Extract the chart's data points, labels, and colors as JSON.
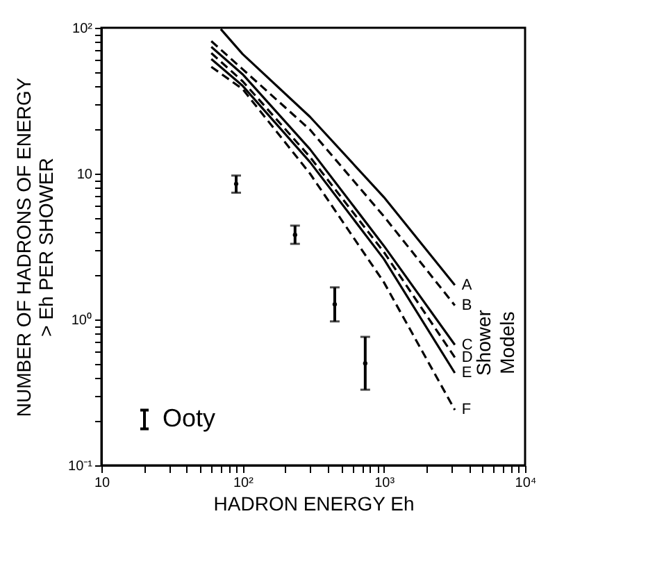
{
  "chart_data": {
    "type": "line",
    "xlabel": "HADRON ENERGY  Eh",
    "ylabel": "NUMBER OF HADRONS OF ENERGY\n> Eh    PER SHOWER",
    "log": "xy",
    "xlim": [
      10,
      10000
    ],
    "ylim": [
      0.1,
      100
    ],
    "xticks": [
      {
        "value": 10,
        "label": "10"
      },
      {
        "value": 20,
        "label": null
      },
      {
        "value": 30,
        "label": null
      },
      {
        "value": 40,
        "label": null
      },
      {
        "value": 50,
        "label": null
      },
      {
        "value": 60,
        "label": null
      },
      {
        "value": 70,
        "label": null
      },
      {
        "value": 80,
        "label": null
      },
      {
        "value": 90,
        "label": null
      },
      {
        "value": 100,
        "label": "10²"
      },
      {
        "value": 200,
        "label": null
      },
      {
        "value": 300,
        "label": null
      },
      {
        "value": 400,
        "label": null
      },
      {
        "value": 500,
        "label": null
      },
      {
        "value": 600,
        "label": null
      },
      {
        "value": 700,
        "label": null
      },
      {
        "value": 800,
        "label": null
      },
      {
        "value": 900,
        "label": null
      },
      {
        "value": 1000,
        "label": "10³"
      },
      {
        "value": 2000,
        "label": null
      },
      {
        "value": 3000,
        "label": null
      },
      {
        "value": 4000,
        "label": null
      },
      {
        "value": 5000,
        "label": null
      },
      {
        "value": 6000,
        "label": null
      },
      {
        "value": 7000,
        "label": null
      },
      {
        "value": 8000,
        "label": null
      },
      {
        "value": 9000,
        "label": null
      },
      {
        "value": 10000,
        "label": "10⁴"
      }
    ],
    "yticks": [
      {
        "value": 0.1,
        "label": "10⁻¹"
      },
      {
        "value": 0.2,
        "label": null
      },
      {
        "value": 0.3,
        "label": null
      },
      {
        "value": 0.4,
        "label": null
      },
      {
        "value": 0.5,
        "label": null
      },
      {
        "value": 0.6,
        "label": null
      },
      {
        "value": 0.7,
        "label": null
      },
      {
        "value": 0.8,
        "label": null
      },
      {
        "value": 0.9,
        "label": null
      },
      {
        "value": 1,
        "label": "10⁰"
      },
      {
        "value": 2,
        "label": null
      },
      {
        "value": 3,
        "label": null
      },
      {
        "value": 4,
        "label": null
      },
      {
        "value": 5,
        "label": null
      },
      {
        "value": 6,
        "label": null
      },
      {
        "value": 7,
        "label": null
      },
      {
        "value": 8,
        "label": null
      },
      {
        "value": 9,
        "label": null
      },
      {
        "value": 10,
        "label": "10"
      },
      {
        "value": 20,
        "label": null
      },
      {
        "value": 30,
        "label": null
      },
      {
        "value": 40,
        "label": null
      },
      {
        "value": 50,
        "label": null
      },
      {
        "value": 60,
        "label": null
      },
      {
        "value": 70,
        "label": null
      },
      {
        "value": 80,
        "label": null
      },
      {
        "value": 90,
        "label": null
      },
      {
        "value": 100,
        "label": "10²"
      }
    ],
    "grid": false,
    "legend": "bottom left",
    "annotations": [
      "Shower Models"
    ],
    "series": [
      {
        "name": "A",
        "color": "#000000",
        "line_style": "solid",
        "x": [
          70,
          100,
          300,
          1000,
          3180
        ],
        "values": [
          98,
          66,
          24.5,
          6.9,
          1.72
        ]
      },
      {
        "name": "B",
        "color": "#000000",
        "line_style": "dashed",
        "x": [
          60,
          100,
          300,
          1000,
          3180
        ],
        "values": [
          81,
          52,
          20,
          5.1,
          1.25
        ]
      },
      {
        "name": "C",
        "color": "#000000",
        "line_style": "solid",
        "x": [
          60,
          100,
          300,
          1000,
          3180
        ],
        "values": [
          74,
          48,
          14.7,
          3.2,
          0.67
        ]
      },
      {
        "name": "D",
        "color": "#000000",
        "line_style": "dashed",
        "x": [
          60,
          100,
          300,
          1000,
          3180
        ],
        "values": [
          67,
          43,
          13,
          2.9,
          0.55
        ]
      },
      {
        "name": "E",
        "color": "#000000",
        "line_style": "solid",
        "x": [
          60,
          100,
          300,
          1000,
          3180
        ],
        "values": [
          61,
          40,
          12,
          2.6,
          0.43
        ]
      },
      {
        "name": "F",
        "color": "#000000",
        "line_style": "dashed",
        "x": [
          60,
          100,
          300,
          1000,
          3180
        ],
        "values": [
          54,
          38,
          10,
          1.8,
          0.24
        ]
      },
      {
        "name": "Ooty",
        "type": "scatter",
        "color": "#000000",
        "marker": "circle",
        "x": [
          90,
          235,
          449,
          738
        ],
        "values": [
          8.5,
          3.8,
          1.27,
          0.5
        ],
        "errors": [
          [
            7.4,
            9.7
          ],
          [
            3.3,
            4.4
          ],
          [
            0.97,
            1.66
          ],
          [
            0.33,
            0.76
          ]
        ]
      }
    ]
  }
}
